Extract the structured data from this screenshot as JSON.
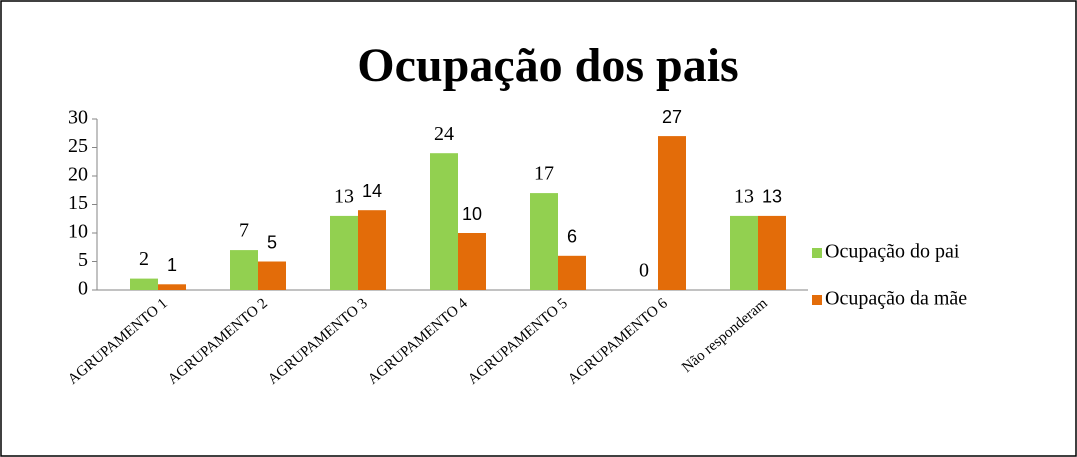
{
  "chart_data": {
    "type": "bar",
    "title": "Ocupação dos pais",
    "categories": [
      "AGRUPAMENTO 1",
      "AGRUPAMENTO 2",
      "AGRUPAMENTO 3",
      "AGRUPAMENTO 4",
      "AGRUPAMENTO 5",
      "AGRUPAMENTO 6",
      "Não responderam"
    ],
    "series": [
      {
        "name": "Ocupação do pai",
        "color": "#92d050",
        "values": [
          2,
          7,
          13,
          24,
          17,
          0,
          13
        ]
      },
      {
        "name": "Ocupação da mãe",
        "color": "#e36c09",
        "values": [
          1,
          5,
          14,
          10,
          6,
          27,
          13
        ]
      }
    ],
    "ylim": [
      0,
      30
    ],
    "yticks": [
      0,
      5,
      10,
      15,
      20,
      25,
      30
    ],
    "grid": false,
    "legend": "right"
  }
}
